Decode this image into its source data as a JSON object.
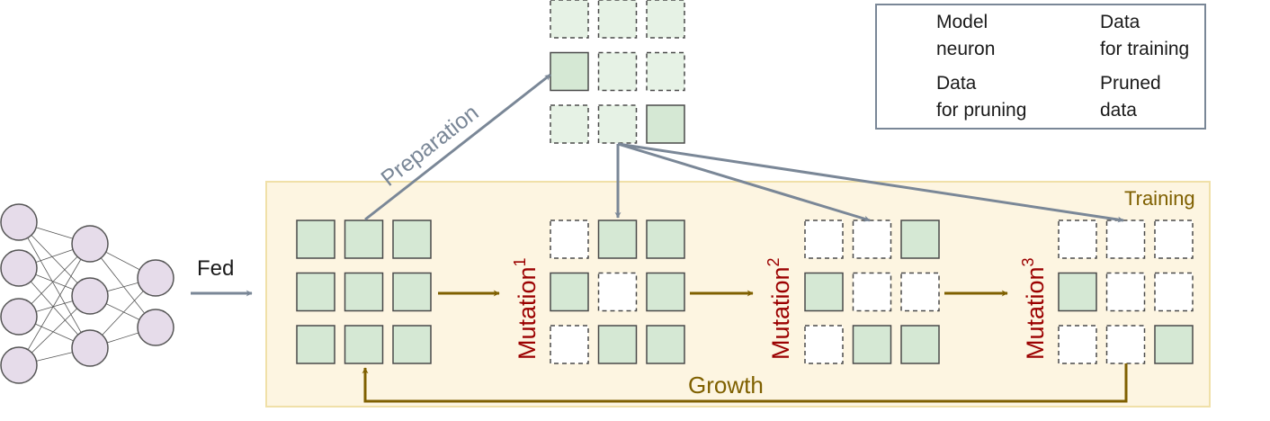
{
  "labels": {
    "fed": "Fed",
    "preparation": "Preparation",
    "training": "Training",
    "growth": "Growth",
    "mutation_word": "Mutation",
    "mutations": [
      "1",
      "2",
      "3"
    ]
  },
  "legend": {
    "model_neuron": "Model\nneuron",
    "data_training": "Data\nfor training",
    "data_pruning": "Data\nfor pruning",
    "pruned_data": "Pruned\ndata"
  },
  "colors": {
    "neuron_fill": "#e6dcea",
    "neuron_stroke": "#555555",
    "train_fill": "#d5e8d4",
    "prune_fill": "#e6f2e5",
    "cell_stroke": "#4a4a4a",
    "training_bg": "#fdf5e1",
    "training_border": "#f0e0a8",
    "arrow_gray": "#7a8797",
    "arrow_olive": "#7f6000",
    "mutation_red": "#9b0000"
  }
}
